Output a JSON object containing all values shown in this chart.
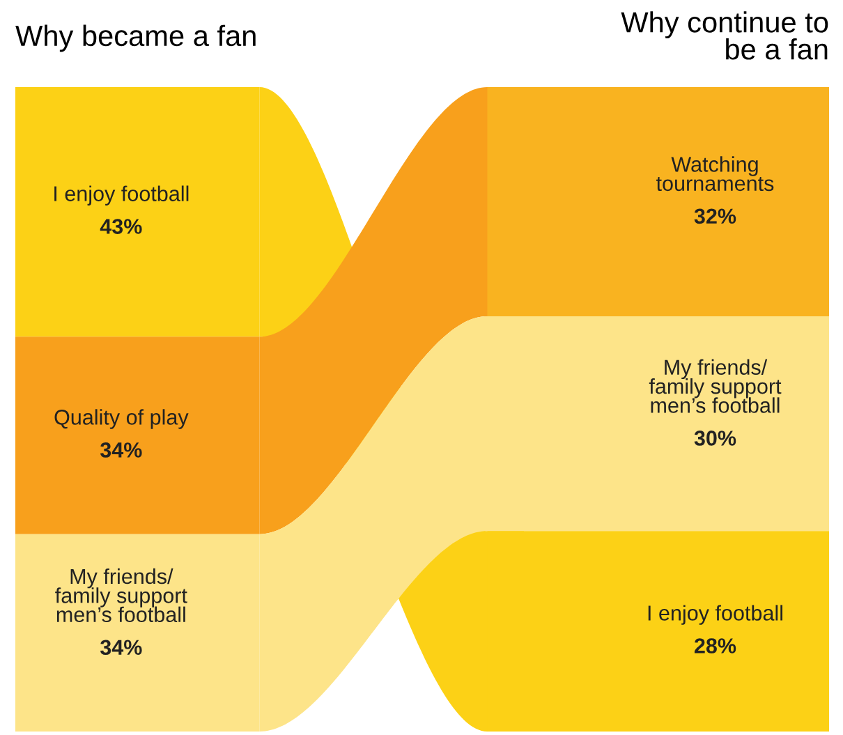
{
  "chart_data": [
    {
      "type": "other",
      "title": "Why became a fan",
      "categories": [
        "I enjoy football",
        "Quality of play",
        "My friends/\nfamily support\nmen’s football"
      ],
      "values": [
        43,
        34,
        34
      ],
      "value_labels": [
        "43%",
        "34%",
        "34%"
      ],
      "colors": [
        "#fcd116",
        "#f8a01c",
        "#fde489"
      ]
    },
    {
      "type": "other",
      "title": "Why continue to\nbe a fan",
      "categories": [
        "Watching\ntournaments",
        "My friends/\nfamily support\nmen’s football",
        "I enjoy football"
      ],
      "values": [
        32,
        30,
        28
      ],
      "value_labels": [
        "32%",
        "30%",
        "28%"
      ],
      "colors": [
        "#f9b320",
        "#fde489",
        "#fcd116"
      ]
    }
  ]
}
